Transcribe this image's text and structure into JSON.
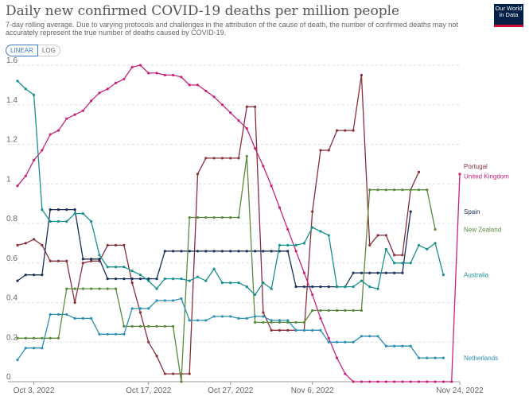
{
  "header": {
    "title": "Daily new confirmed COVID-19 deaths per million people",
    "subtitle": "7-day rolling average. Due to varying protocols and challenges in the attribution of the cause of death, the number of confirmed deaths may not accurately represent the true number of deaths caused by COVID-19."
  },
  "logo": {
    "line1": "Our World",
    "line2": "in Data"
  },
  "toggles": {
    "linear": "LINEAR",
    "log": "LOG"
  },
  "chart_data": {
    "type": "line",
    "x_start": "2022-10-01",
    "x_end": "2022-11-24",
    "ylim": [
      0,
      1.6
    ],
    "y_ticks": [
      "0",
      "0.2",
      "0.4",
      "0.6",
      "0.8",
      "1",
      "1.2",
      "1.4",
      "1.6"
    ],
    "x_ticks": [
      {
        "label": "Oct 3, 2022",
        "day": 2
      },
      {
        "label": "Oct 17, 2022",
        "day": 16
      },
      {
        "label": "Oct 27, 2022",
        "day": 26
      },
      {
        "label": "Nov 6, 2022",
        "day": 36
      },
      {
        "label": "Nov 24, 2022",
        "day": 54
      }
    ],
    "grid": true,
    "series": [
      {
        "name": "Portugal",
        "color": "#883039",
        "label_y": 1.09,
        "values": [
          [
            0,
            0.69
          ],
          [
            1,
            0.7
          ],
          [
            2,
            0.72
          ],
          [
            3,
            0.69
          ],
          [
            4,
            0.61
          ],
          [
            5,
            0.61
          ],
          [
            6,
            0.61
          ],
          [
            7,
            0.4
          ],
          [
            8,
            0.6
          ],
          [
            9,
            0.61
          ],
          [
            10,
            0.61
          ],
          [
            11,
            0.69
          ],
          [
            12,
            0.69
          ],
          [
            13,
            0.69
          ],
          [
            14,
            0.5
          ],
          [
            15,
            0.35
          ],
          [
            16,
            0.2
          ],
          [
            17,
            0.13
          ],
          [
            18,
            0.04
          ],
          [
            19,
            0.04
          ],
          [
            20,
            0.04
          ],
          [
            21,
            0.04
          ],
          [
            22,
            1.05
          ],
          [
            23,
            1.13
          ],
          [
            24,
            1.13
          ],
          [
            25,
            1.13
          ],
          [
            26,
            1.13
          ],
          [
            27,
            1.13
          ],
          [
            28,
            1.39
          ],
          [
            29,
            1.39
          ],
          [
            30,
            0.35
          ],
          [
            31,
            0.26
          ],
          [
            32,
            0.26
          ],
          [
            33,
            0.26
          ],
          [
            34,
            0.26
          ],
          [
            35,
            0.26
          ],
          [
            36,
            0.86
          ],
          [
            37,
            1.17
          ],
          [
            38,
            1.17
          ],
          [
            39,
            1.27
          ],
          [
            40,
            1.27
          ],
          [
            41,
            1.27
          ],
          [
            42,
            1.55
          ],
          [
            43,
            0.69
          ],
          [
            44,
            0.74
          ],
          [
            45,
            0.74
          ],
          [
            46,
            0.64
          ],
          [
            47,
            0.64
          ],
          [
            48,
            0.97
          ],
          [
            49,
            1.06
          ]
        ]
      },
      {
        "name": "United Kingdom",
        "color": "#c8237b",
        "label_y": 1.04,
        "values": [
          [
            0,
            0.99
          ],
          [
            1,
            1.04
          ],
          [
            2,
            1.12
          ],
          [
            3,
            1.17
          ],
          [
            4,
            1.25
          ],
          [
            5,
            1.27
          ],
          [
            6,
            1.33
          ],
          [
            7,
            1.35
          ],
          [
            8,
            1.37
          ],
          [
            9,
            1.42
          ],
          [
            10,
            1.46
          ],
          [
            11,
            1.48
          ],
          [
            12,
            1.51
          ],
          [
            13,
            1.53
          ],
          [
            14,
            1.59
          ],
          [
            15,
            1.6
          ],
          [
            16,
            1.56
          ],
          [
            17,
            1.56
          ],
          [
            18,
            1.55
          ],
          [
            19,
            1.55
          ],
          [
            20,
            1.54
          ],
          [
            21,
            1.5
          ],
          [
            22,
            1.5
          ],
          [
            23,
            1.47
          ],
          [
            24,
            1.44
          ],
          [
            25,
            1.4
          ],
          [
            26,
            1.36
          ],
          [
            27,
            1.32
          ],
          [
            28,
            1.28
          ],
          [
            29,
            1.18
          ],
          [
            30,
            1.09
          ],
          [
            31,
            0.99
          ],
          [
            32,
            0.88
          ],
          [
            33,
            0.77
          ],
          [
            34,
            0.66
          ],
          [
            35,
            0.55
          ],
          [
            36,
            0.44
          ],
          [
            37,
            0.32
          ],
          [
            38,
            0.22
          ],
          [
            39,
            0.12
          ],
          [
            40,
            0.04
          ],
          [
            41,
            0.0
          ],
          [
            42,
            0.0
          ],
          [
            43,
            0.0
          ],
          [
            44,
            0.0
          ],
          [
            45,
            0.0
          ],
          [
            46,
            0.0
          ],
          [
            47,
            0.0
          ],
          [
            48,
            0.0
          ],
          [
            49,
            0.0
          ],
          [
            50,
            0.0
          ],
          [
            51,
            0.0
          ],
          [
            52,
            0.0
          ],
          [
            53,
            0.0
          ],
          [
            54,
            1.05
          ]
        ]
      },
      {
        "name": "Spain",
        "color": "#1a2f5a",
        "label_y": 0.86,
        "values": [
          [
            0,
            0.51
          ],
          [
            1,
            0.54
          ],
          [
            2,
            0.54
          ],
          [
            3,
            0.54
          ],
          [
            4,
            0.87
          ],
          [
            5,
            0.87
          ],
          [
            6,
            0.87
          ],
          [
            7,
            0.87
          ],
          [
            8,
            0.62
          ],
          [
            9,
            0.62
          ],
          [
            10,
            0.62
          ],
          [
            11,
            0.52
          ],
          [
            12,
            0.52
          ],
          [
            13,
            0.52
          ],
          [
            14,
            0.52
          ],
          [
            15,
            0.52
          ],
          [
            16,
            0.52
          ],
          [
            17,
            0.52
          ],
          [
            18,
            0.66
          ],
          [
            19,
            0.66
          ],
          [
            20,
            0.66
          ],
          [
            21,
            0.66
          ],
          [
            22,
            0.66
          ],
          [
            23,
            0.66
          ],
          [
            24,
            0.66
          ],
          [
            25,
            0.66
          ],
          [
            26,
            0.66
          ],
          [
            27,
            0.66
          ],
          [
            28,
            0.66
          ],
          [
            29,
            0.66
          ],
          [
            30,
            0.66
          ],
          [
            31,
            0.66
          ],
          [
            32,
            0.66
          ],
          [
            33,
            0.66
          ],
          [
            34,
            0.48
          ],
          [
            35,
            0.48
          ],
          [
            36,
            0.48
          ],
          [
            37,
            0.48
          ],
          [
            38,
            0.48
          ],
          [
            39,
            0.48
          ],
          [
            40,
            0.48
          ],
          [
            41,
            0.55
          ],
          [
            42,
            0.55
          ],
          [
            43,
            0.55
          ],
          [
            44,
            0.55
          ],
          [
            45,
            0.55
          ],
          [
            46,
            0.55
          ],
          [
            47,
            0.55
          ],
          [
            48,
            0.86
          ]
        ]
      },
      {
        "name": "New Zealand",
        "color": "#5b8a3c",
        "label_y": 0.77,
        "values": [
          [
            0,
            0.22
          ],
          [
            1,
            0.22
          ],
          [
            2,
            0.22
          ],
          [
            3,
            0.22
          ],
          [
            4,
            0.22
          ],
          [
            5,
            0.22
          ],
          [
            6,
            0.47
          ],
          [
            7,
            0.47
          ],
          [
            8,
            0.47
          ],
          [
            9,
            0.47
          ],
          [
            10,
            0.47
          ],
          [
            11,
            0.47
          ],
          [
            12,
            0.47
          ],
          [
            13,
            0.28
          ],
          [
            14,
            0.28
          ],
          [
            15,
            0.28
          ],
          [
            16,
            0.28
          ],
          [
            17,
            0.28
          ],
          [
            18,
            0.28
          ],
          [
            19,
            0.28
          ],
          [
            20,
            0.0
          ],
          [
            21,
            0.83
          ],
          [
            22,
            0.83
          ],
          [
            23,
            0.83
          ],
          [
            24,
            0.83
          ],
          [
            25,
            0.83
          ],
          [
            26,
            0.83
          ],
          [
            27,
            0.83
          ],
          [
            28,
            1.14
          ],
          [
            29,
            0.3
          ],
          [
            30,
            0.3
          ],
          [
            31,
            0.3
          ],
          [
            32,
            0.3
          ],
          [
            33,
            0.3
          ],
          [
            34,
            0.3
          ],
          [
            35,
            0.3
          ],
          [
            36,
            0.36
          ],
          [
            37,
            0.36
          ],
          [
            38,
            0.36
          ],
          [
            39,
            0.36
          ],
          [
            40,
            0.36
          ],
          [
            41,
            0.36
          ],
          [
            42,
            0.36
          ],
          [
            43,
            0.97
          ],
          [
            44,
            0.97
          ],
          [
            45,
            0.97
          ],
          [
            46,
            0.97
          ],
          [
            47,
            0.97
          ],
          [
            48,
            0.97
          ],
          [
            49,
            0.97
          ],
          [
            50,
            0.97
          ],
          [
            51,
            0.77
          ]
        ]
      },
      {
        "name": "Australia",
        "color": "#18918e",
        "label_y": 0.54,
        "values": [
          [
            0,
            1.52
          ],
          [
            1,
            1.48
          ],
          [
            2,
            1.45
          ],
          [
            3,
            0.87
          ],
          [
            4,
            0.81
          ],
          [
            5,
            0.81
          ],
          [
            6,
            0.81
          ],
          [
            7,
            0.85
          ],
          [
            8,
            0.85
          ],
          [
            9,
            0.81
          ],
          [
            10,
            0.64
          ],
          [
            11,
            0.58
          ],
          [
            12,
            0.58
          ],
          [
            13,
            0.58
          ],
          [
            14,
            0.56
          ],
          [
            15,
            0.54
          ],
          [
            16,
            0.51
          ],
          [
            17,
            0.47
          ],
          [
            18,
            0.52
          ],
          [
            19,
            0.52
          ],
          [
            20,
            0.52
          ],
          [
            21,
            0.51
          ],
          [
            22,
            0.53
          ],
          [
            23,
            0.51
          ],
          [
            24,
            0.57
          ],
          [
            25,
            0.5
          ],
          [
            26,
            0.5
          ],
          [
            27,
            0.5
          ],
          [
            28,
            0.48
          ],
          [
            29,
            0.44
          ],
          [
            30,
            0.5
          ],
          [
            31,
            0.47
          ],
          [
            32,
            0.69
          ],
          [
            33,
            0.69
          ],
          [
            34,
            0.69
          ],
          [
            35,
            0.7
          ],
          [
            36,
            0.78
          ],
          [
            37,
            0.76
          ],
          [
            38,
            0.74
          ],
          [
            39,
            0.48
          ],
          [
            40,
            0.48
          ],
          [
            41,
            0.48
          ],
          [
            42,
            0.51
          ],
          [
            43,
            0.48
          ],
          [
            44,
            0.47
          ],
          [
            45,
            0.67
          ],
          [
            46,
            0.6
          ],
          [
            47,
            0.6
          ],
          [
            48,
            0.6
          ],
          [
            49,
            0.69
          ],
          [
            50,
            0.67
          ],
          [
            51,
            0.7
          ],
          [
            52,
            0.54
          ]
        ]
      },
      {
        "name": "Netherlands",
        "color": "#2c8fb5",
        "label_y": 0.12,
        "values": [
          [
            0,
            0.11
          ],
          [
            1,
            0.17
          ],
          [
            2,
            0.17
          ],
          [
            3,
            0.17
          ],
          [
            4,
            0.34
          ],
          [
            5,
            0.34
          ],
          [
            6,
            0.34
          ],
          [
            7,
            0.32
          ],
          [
            8,
            0.32
          ],
          [
            9,
            0.32
          ],
          [
            10,
            0.24
          ],
          [
            11,
            0.24
          ],
          [
            12,
            0.24
          ],
          [
            13,
            0.24
          ],
          [
            14,
            0.37
          ],
          [
            15,
            0.37
          ],
          [
            16,
            0.37
          ],
          [
            17,
            0.41
          ],
          [
            18,
            0.41
          ],
          [
            19,
            0.41
          ],
          [
            20,
            0.42
          ],
          [
            21,
            0.31
          ],
          [
            22,
            0.31
          ],
          [
            23,
            0.31
          ],
          [
            24,
            0.33
          ],
          [
            25,
            0.33
          ],
          [
            26,
            0.33
          ],
          [
            27,
            0.32
          ],
          [
            28,
            0.32
          ],
          [
            29,
            0.33
          ],
          [
            30,
            0.33
          ],
          [
            31,
            0.31
          ],
          [
            32,
            0.31
          ],
          [
            33,
            0.31
          ],
          [
            34,
            0.26
          ],
          [
            35,
            0.26
          ],
          [
            36,
            0.26
          ],
          [
            37,
            0.26
          ],
          [
            38,
            0.2
          ],
          [
            39,
            0.2
          ],
          [
            40,
            0.2
          ],
          [
            41,
            0.2
          ],
          [
            42,
            0.23
          ],
          [
            43,
            0.23
          ],
          [
            44,
            0.23
          ],
          [
            45,
            0.18
          ],
          [
            46,
            0.18
          ],
          [
            47,
            0.18
          ],
          [
            48,
            0.18
          ],
          [
            49,
            0.12
          ],
          [
            50,
            0.12
          ],
          [
            51,
            0.12
          ],
          [
            52,
            0.12
          ]
        ]
      }
    ]
  }
}
